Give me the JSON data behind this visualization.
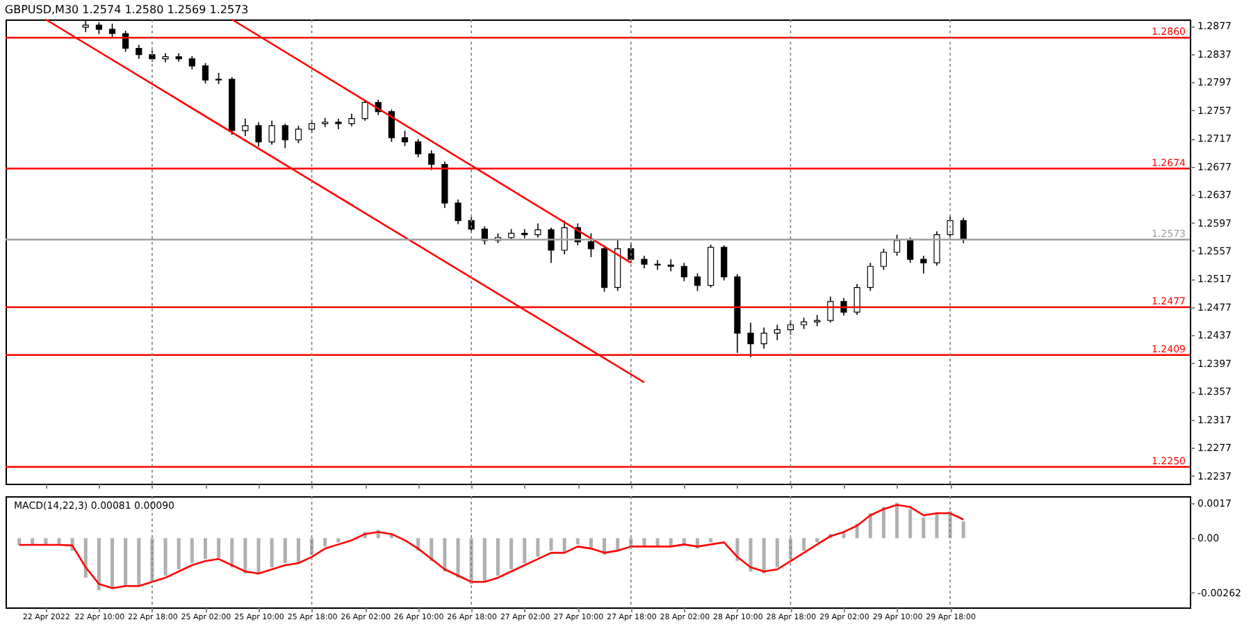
{
  "chart_data": [
    {
      "type": "candlestick",
      "title": "GBPUSD,M30 1.2574 1.2580 1.2569 1.2573",
      "color": "#000000",
      "categories": [
        null,
        null,
        "22 Apr 2022",
        null,
        null,
        null,
        "22 Apr 10:00",
        null,
        null,
        null,
        "22 Apr 18:00",
        null,
        null,
        null,
        "25 Apr 02:00",
        null,
        null,
        null,
        "25 Apr 10:00",
        null,
        null,
        null,
        "25 Apr 18:00",
        null,
        null,
        null,
        "26 Apr 02:00",
        null,
        null,
        null,
        "26 Apr 10:00",
        null,
        null,
        null,
        "26 Apr 18:00",
        null,
        null,
        null,
        "27 Apr 02:00",
        null,
        null,
        null,
        "27 Apr 10:00",
        null,
        null,
        null,
        "27 Apr 18:00",
        null,
        null,
        null,
        "28 Apr 02:00",
        null,
        null,
        null,
        "28 Apr 10:00",
        null,
        null,
        null,
        "28 Apr 18:00",
        null,
        null,
        null,
        "29 Apr 02:00",
        null,
        null,
        null,
        "29 Apr 10:00",
        null,
        null,
        null,
        "29 Apr 18:00",
        null,
        null,
        null,
        null,
        null,
        null,
        null,
        null,
        null,
        null,
        null,
        null,
        null,
        null,
        null,
        null,
        null
      ],
      "ohlc": [
        null,
        null,
        null,
        null,
        null,
        [
          1.2875,
          1.2884,
          1.2868,
          1.2878
        ],
        [
          1.2878,
          1.2882,
          1.2865,
          1.2872
        ],
        [
          1.2872,
          1.288,
          1.286,
          1.2866
        ],
        [
          1.2866,
          1.287,
          1.284,
          1.2845
        ],
        [
          1.2845,
          1.285,
          1.283,
          1.2836
        ],
        [
          1.2836,
          1.2842,
          1.2826,
          1.283
        ],
        [
          1.283,
          1.2838,
          1.2825,
          1.2833
        ],
        [
          1.2833,
          1.2838,
          1.2826,
          1.283
        ],
        [
          1.283,
          1.2834,
          1.2815,
          1.282
        ],
        [
          1.282,
          1.2824,
          1.2795,
          1.28
        ],
        [
          1.28,
          1.281,
          1.2794,
          1.2801
        ],
        [
          1.2801,
          1.2804,
          1.2722,
          1.2728
        ],
        [
          1.2728,
          1.2745,
          1.272,
          1.2735
        ],
        [
          1.2735,
          1.274,
          1.2705,
          1.2712
        ],
        [
          1.2712,
          1.2742,
          1.2708,
          1.2735
        ],
        [
          1.2735,
          1.2738,
          1.2703,
          1.2715
        ],
        [
          1.2715,
          1.2735,
          1.271,
          1.273
        ],
        [
          1.273,
          1.2743,
          1.2725,
          1.2738
        ],
        [
          1.2738,
          1.2746,
          1.2733,
          1.274
        ],
        [
          1.274,
          1.2745,
          1.273,
          1.2738
        ],
        [
          1.2738,
          1.2752,
          1.2734,
          1.2745
        ],
        [
          1.2745,
          1.277,
          1.2742,
          1.2768
        ],
        [
          1.2768,
          1.2772,
          1.275,
          1.2755
        ],
        [
          1.2755,
          1.2758,
          1.2712,
          1.2718
        ],
        [
          1.2718,
          1.2728,
          1.2706,
          1.2712
        ],
        [
          1.2712,
          1.2716,
          1.269,
          1.2695
        ],
        [
          1.2695,
          1.27,
          1.2672,
          1.268
        ],
        [
          1.268,
          1.2684,
          1.2618,
          1.2625
        ],
        [
          1.2625,
          1.263,
          1.2595,
          1.26
        ],
        [
          1.26,
          1.2605,
          1.2583,
          1.2588
        ],
        [
          1.2588,
          1.2592,
          1.2566,
          1.2572
        ],
        [
          1.2572,
          1.2582,
          1.2568,
          1.2576
        ],
        [
          1.2576,
          1.2588,
          1.2572,
          1.2582
        ],
        [
          1.2582,
          1.2588,
          1.2575,
          1.258
        ],
        [
          1.258,
          1.2596,
          1.2576,
          1.2587
        ],
        [
          1.2587,
          1.259,
          1.254,
          1.2558
        ],
        [
          1.2558,
          1.26,
          1.2552,
          1.259
        ],
        [
          1.259,
          1.2596,
          1.2565,
          1.257
        ],
        [
          1.257,
          1.2582,
          1.2548,
          1.256
        ],
        [
          1.256,
          1.2565,
          1.2499,
          1.2505
        ],
        [
          1.2505,
          1.2572,
          1.25,
          1.256
        ],
        [
          1.256,
          1.2568,
          1.254,
          1.2545
        ],
        [
          1.2545,
          1.255,
          1.2532,
          1.2538
        ],
        [
          1.2538,
          1.2544,
          1.253,
          1.2537
        ],
        [
          1.2537,
          1.2545,
          1.2528,
          1.2535
        ],
        [
          1.2535,
          1.254,
          1.2514,
          1.252
        ],
        [
          1.252,
          1.2525,
          1.25,
          1.2508
        ],
        [
          1.2508,
          1.2566,
          1.2505,
          1.2562
        ],
        [
          1.2562,
          1.2565,
          1.2515,
          1.252
        ],
        [
          1.252,
          1.2524,
          1.2412,
          1.244
        ],
        [
          1.244,
          1.2455,
          1.2406,
          1.2425
        ],
        [
          1.2425,
          1.2448,
          1.2418,
          1.244
        ],
        [
          1.244,
          1.2452,
          1.243,
          1.2445
        ],
        [
          1.2445,
          1.2458,
          1.2438,
          1.2452
        ],
        [
          1.2452,
          1.2462,
          1.2446,
          1.2456
        ],
        [
          1.2456,
          1.2466,
          1.245,
          1.2458
        ],
        [
          1.2458,
          1.2492,
          1.2455,
          1.2485
        ],
        [
          1.2485,
          1.249,
          1.2465,
          1.247
        ],
        [
          1.247,
          1.251,
          1.2466,
          1.2505
        ],
        [
          1.2505,
          1.254,
          1.25,
          1.2535
        ],
        [
          1.2535,
          1.256,
          1.253,
          1.2555
        ],
        [
          1.2555,
          1.258,
          1.255,
          1.2572
        ],
        [
          1.2572,
          1.2576,
          1.254,
          1.2545
        ],
        [
          1.2545,
          1.255,
          1.2525,
          1.254
        ],
        [
          1.254,
          1.2585,
          1.2536,
          1.258
        ],
        [
          1.258,
          1.2607,
          1.2576,
          1.26
        ],
        [
          1.26,
          1.2604,
          1.2568,
          1.2573
        ],
        null,
        null,
        null,
        null,
        null,
        null,
        null,
        null,
        null,
        null,
        null,
        null,
        null,
        null,
        null,
        null
      ],
      "series": [
        {
          "type": "line",
          "color": "#ff0000",
          "values": [
            null,
            null,
            null,
            null,
            null,
            null,
            null,
            null,
            null,
            null,
            null,
            null,
            null,
            null,
            null,
            null,
            1.2886,
            null,
            null,
            null,
            null,
            null,
            null,
            null,
            null,
            null,
            null,
            null,
            null,
            null,
            null,
            null,
            null,
            null,
            null,
            null,
            null,
            null,
            null,
            null,
            null,
            null,
            null,
            null,
            null,
            null,
            1.254,
            null,
            null,
            null,
            null,
            null,
            null,
            null,
            null,
            null,
            null,
            null,
            null,
            null,
            null,
            null,
            null,
            null,
            null,
            null,
            null,
            null,
            null,
            null,
            null,
            null,
            null,
            null,
            null,
            null,
            null,
            null,
            null,
            null,
            null,
            null,
            null,
            null,
            null,
            null,
            null,
            null
          ]
        },
        {
          "type": "line",
          "color": "#ff0000",
          "values": [
            null,
            null,
            1.2886,
            null,
            null,
            null,
            null,
            null,
            null,
            null,
            null,
            null,
            null,
            null,
            null,
            null,
            null,
            null,
            null,
            null,
            null,
            null,
            null,
            null,
            null,
            null,
            null,
            null,
            null,
            null,
            null,
            null,
            null,
            null,
            null,
            null,
            null,
            null,
            null,
            null,
            null,
            null,
            null,
            null,
            null,
            null,
            null,
            1.237,
            null,
            null,
            null,
            null,
            null,
            null,
            null,
            null,
            null,
            null,
            null,
            null,
            null,
            null,
            null,
            null,
            null,
            null,
            null,
            null,
            null,
            null,
            null,
            null,
            null,
            null,
            null,
            null,
            null,
            null,
            null,
            null,
            null,
            null,
            null,
            null,
            null,
            null,
            null,
            null
          ]
        }
      ],
      "ylim": [
        1.2226,
        1.2886
      ],
      "yticks": [
        1.2237,
        1.2277,
        1.2317,
        1.2357,
        1.2397,
        1.2437,
        1.2477,
        1.2517,
        1.2557,
        1.2597,
        1.2637,
        1.2677,
        1.2717,
        1.2757,
        1.2797,
        1.2837,
        1.2877
      ],
      "tick_labels": "y",
      "ref_lines": [
        {
          "axis": "y",
          "value": 1.286,
          "label": "1.2860",
          "color": "#ff0000"
        },
        {
          "axis": "y",
          "value": 1.2674,
          "label": "1.2674",
          "color": "#ff0000"
        },
        {
          "axis": "y",
          "value": 1.2573,
          "label": "1.2573",
          "color": "#a0a0a0"
        },
        {
          "axis": "y",
          "value": 1.2477,
          "label": "1.2477",
          "color": "#ff0000"
        },
        {
          "axis": "y",
          "value": 1.2409,
          "label": "1.2409",
          "color": "#ff0000"
        },
        {
          "axis": "y",
          "value": 1.225,
          "label": "1.2250",
          "color": "#ff0000"
        },
        {
          "axis": "x",
          "value": "22 Apr 18:00",
          "color": "#808080",
          "line_style": "dotted"
        },
        {
          "axis": "x",
          "value": "25 Apr 18:00",
          "color": "#808080",
          "line_style": "dotted"
        },
        {
          "axis": "x",
          "value": "26 Apr 18:00",
          "color": "#808080",
          "line_style": "dotted"
        },
        {
          "axis": "x",
          "value": "27 Apr 18:00",
          "color": "#808080",
          "line_style": "dotted"
        },
        {
          "axis": "x",
          "value": "28 Apr 18:00",
          "color": "#808080",
          "line_style": "dotted"
        },
        {
          "axis": "x",
          "value": "29 Apr 18:00",
          "color": "#808080",
          "line_style": "dotted"
        }
      ]
    },
    {
      "type": "bar",
      "title": "MACD(14,22,3) 0.00081 0.00090",
      "categories": [
        null,
        null,
        "22 Apr 2022",
        null,
        null,
        null,
        "22 Apr 10:00",
        null,
        null,
        null,
        "22 Apr 18:00",
        null,
        null,
        null,
        "25 Apr 02:00",
        null,
        null,
        null,
        "25 Apr 10:00",
        null,
        null,
        null,
        "25 Apr 18:00",
        null,
        null,
        null,
        "26 Apr 02:00",
        null,
        null,
        null,
        "26 Apr 10:00",
        null,
        null,
        null,
        "26 Apr 18:00",
        null,
        null,
        null,
        "27 Apr 02:00",
        null,
        null,
        null,
        "27 Apr 10:00",
        null,
        null,
        null,
        "27 Apr 18:00",
        null,
        null,
        null,
        "28 Apr 02:00",
        null,
        null,
        null,
        "28 Apr 10:00",
        null,
        null,
        null,
        "28 Apr 18:00",
        null,
        null,
        null,
        "29 Apr 02:00",
        null,
        null,
        null,
        "29 Apr 10:00",
        null,
        null,
        null,
        "29 Apr 18:00",
        null,
        null,
        null,
        null,
        null,
        null,
        null,
        null,
        null,
        null,
        null,
        null,
        null,
        null,
        null,
        null,
        null
      ],
      "series": [
        {
          "type": "bar",
          "color": "#b0b0b0",
          "values": [
            -0.00032,
            -0.00032,
            -0.00032,
            -0.00032,
            -0.0006,
            -0.0019,
            -0.0025,
            -0.0024,
            -0.0023,
            -0.0023,
            -0.0021,
            -0.0018,
            -0.0015,
            -0.0012,
            -0.001,
            -0.00095,
            -0.0014,
            -0.0017,
            -0.0017,
            -0.0014,
            -0.0012,
            -0.0012,
            -0.0008,
            -0.0004,
            -0.0002,
            0,
            0.0003,
            0.0004,
            0.00017,
            null,
            -0.0006,
            -0.0011,
            -0.0016,
            -0.0019,
            -0.0022,
            -0.0021,
            -0.0018,
            -0.0015,
            -0.0012,
            -0.0009,
            -0.0006,
            -0.0007,
            -0.0003,
            -0.0005,
            -0.0008,
            -0.0006,
            -0.0004,
            -0.0004,
            -0.0004,
            -0.0004,
            -0.0003,
            -0.0005,
            -0.0002,
            null,
            -0.0011,
            -0.0016,
            -0.0017,
            -0.0014,
            -0.001,
            -0.0006,
            -0.0002,
            0.0002,
            0.0003,
            0.0007,
            0.0012,
            0.0015,
            0.0017,
            0.0014,
            0.001,
            0.0012,
            0.0013,
            0.00081,
            null,
            null,
            null,
            null,
            null,
            null,
            null,
            null,
            null,
            null,
            null,
            null,
            null,
            null,
            null,
            null
          ]
        },
        {
          "type": "line",
          "color": "#ff0000",
          "values": [
            -0.00032,
            -0.00032,
            -0.00032,
            -0.00032,
            -0.00035,
            -0.0014,
            -0.0022,
            -0.0024,
            -0.0023,
            -0.0023,
            -0.0021,
            -0.0019,
            -0.0016,
            -0.0013,
            -0.0011,
            -0.001,
            -0.0013,
            -0.0016,
            -0.0017,
            -0.0015,
            -0.0013,
            -0.0012,
            -0.0009,
            -0.0005,
            -0.0003,
            -0.0001,
            0.0002,
            0.0003,
            0.0002,
            -0.0001,
            -0.0005,
            -0.001,
            -0.0015,
            -0.0018,
            -0.0021,
            -0.0021,
            -0.0019,
            -0.0016,
            -0.0013,
            -0.001,
            -0.0007,
            -0.0007,
            -0.0004,
            -0.0005,
            -0.0007,
            -0.0006,
            -0.0004,
            -0.0004,
            -0.0004,
            -0.0004,
            -0.0003,
            -0.0004,
            -0.0003,
            -0.0002,
            -0.0009,
            -0.0014,
            -0.0016,
            -0.0015,
            -0.0011,
            -0.0007,
            -0.0003,
            0.0001,
            0.0003,
            0.0006,
            0.0011,
            0.0014,
            0.0016,
            0.0015,
            0.0011,
            0.0012,
            0.0012,
            0.0009,
            null,
            null,
            null,
            null,
            null,
            null,
            null,
            null,
            null,
            null,
            null,
            null,
            null,
            null,
            null,
            null
          ]
        }
      ],
      "ylim": [
        -0.00333,
        0.00202
      ],
      "yticks": [
        0.0017,
        {
          "value": 0,
          "label": "0.00"
        },
        -0.00262
      ],
      "ref_lines": [
        {
          "axis": "x",
          "value": "22 Apr 18:00",
          "color": "#808080",
          "line_style": "dotted"
        },
        {
          "axis": "x",
          "value": "25 Apr 18:00",
          "color": "#808080",
          "line_style": "dotted"
        },
        {
          "axis": "x",
          "value": "26 Apr 18:00",
          "color": "#808080",
          "line_style": "dotted"
        },
        {
          "axis": "x",
          "value": "27 Apr 18:00",
          "color": "#808080",
          "line_style": "dotted"
        },
        {
          "axis": "x",
          "value": "28 Apr 18:00",
          "color": "#808080",
          "line_style": "dotted"
        },
        {
          "axis": "x",
          "value": "29 Apr 18:00",
          "color": "#808080",
          "line_style": "dotted"
        }
      ]
    }
  ]
}
